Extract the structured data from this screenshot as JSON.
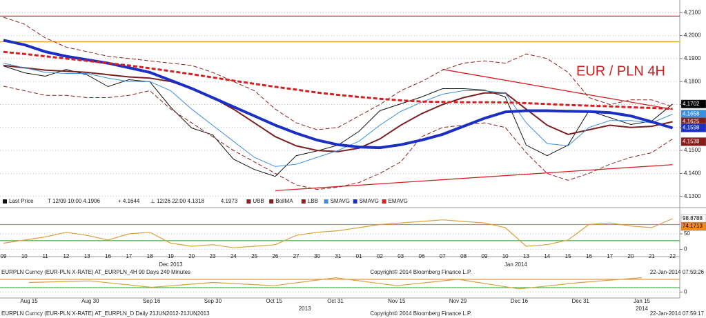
{
  "chart_data": [
    {
      "type": "line",
      "title": "EUR / PLN 4H",
      "categories": [
        "09",
        "10",
        "11",
        "12",
        "13",
        "16",
        "17",
        "18",
        "19",
        "20",
        "23",
        "24",
        "25",
        "26",
        "27",
        "30",
        "31",
        "01",
        "02",
        "03",
        "06",
        "07",
        "08",
        "09",
        "10",
        "13",
        "14",
        "15",
        "16",
        "17",
        "20",
        "21",
        "22"
      ],
      "periods": [
        {
          "label": "Dec 2013",
          "first": 0,
          "last": 16
        },
        {
          "label": "Jan 2014",
          "first": 17,
          "last": 32
        }
      ],
      "series": [
        {
          "name": "Last Price",
          "color": "#111111",
          "width": 1,
          "dash": false,
          "values": [
            4.1868,
            4.1838,
            4.1823,
            4.1853,
            4.1829,
            4.1778,
            4.1808,
            4.1799,
            4.1688,
            4.1598,
            4.1568,
            4.1462,
            4.1417,
            4.1387,
            4.1477,
            4.1498,
            4.1523,
            4.1583,
            4.1673,
            4.1703,
            4.1733,
            4.1769,
            4.1769,
            4.1763,
            4.1733,
            4.1523,
            4.1477,
            4.1523,
            4.1673,
            4.1643,
            4.1613,
            4.1628,
            4.1702
          ]
        },
        {
          "name": "UBB",
          "color": "#8b2020",
          "width": 1,
          "dash": true,
          "values": [
            4.208,
            4.205,
            4.199,
            4.195,
            4.193,
            4.191,
            4.19,
            4.189,
            4.188,
            4.187,
            4.184,
            4.18,
            4.176,
            4.168,
            4.162,
            4.159,
            4.16,
            4.165,
            4.17,
            4.176,
            4.18,
            4.185,
            4.188,
            4.189,
            4.188,
            4.192,
            4.19,
            4.184,
            4.173,
            4.17,
            4.172,
            4.172,
            4.169
          ]
        },
        {
          "name": "BollMA",
          "color": "#7a1e1e",
          "width": 2,
          "dash": false,
          "values": [
            4.187,
            4.186,
            4.185,
            4.1845,
            4.184,
            4.183,
            4.182,
            4.1815,
            4.18,
            4.177,
            4.173,
            4.168,
            4.162,
            4.156,
            4.152,
            4.15,
            4.1495,
            4.151,
            4.155,
            4.161,
            4.166,
            4.17,
            4.173,
            4.175,
            4.175,
            4.168,
            4.161,
            4.157,
            4.159,
            4.161,
            4.16,
            4.1605,
            4.1625
          ]
        },
        {
          "name": "LBB",
          "color": "#8b2020",
          "width": 1,
          "dash": true,
          "values": [
            4.178,
            4.176,
            4.174,
            4.174,
            4.173,
            4.173,
            4.174,
            4.176,
            4.168,
            4.162,
            4.156,
            4.15,
            4.145,
            4.14,
            4.135,
            4.133,
            4.134,
            4.136,
            4.14,
            4.145,
            4.156,
            4.16,
            4.161,
            4.162,
            4.16,
            4.149,
            4.14,
            4.137,
            4.14,
            4.144,
            4.147,
            4.149,
            4.155
          ]
        },
        {
          "name": "SMAVG",
          "color": "#3b8fdc",
          "width": 1,
          "dash": false,
          "values": [
            4.188,
            4.186,
            4.184,
            4.1835,
            4.1835,
            4.1815,
            4.18,
            4.18,
            4.176,
            4.168,
            4.161,
            4.154,
            4.147,
            4.143,
            4.144,
            4.147,
            4.15,
            4.154,
            4.161,
            4.167,
            4.171,
            4.1745,
            4.176,
            4.176,
            4.175,
            4.162,
            4.153,
            4.152,
            4.16,
            4.163,
            4.163,
            4.162,
            4.1658
          ]
        },
        {
          "name": "SMAVG",
          "color": "#1c2fc4",
          "width": 4,
          "dash": false,
          "values": [
            4.198,
            4.196,
            4.193,
            4.191,
            4.1895,
            4.188,
            4.186,
            4.184,
            4.1805,
            4.177,
            4.173,
            4.169,
            4.165,
            4.161,
            4.1575,
            4.1545,
            4.1525,
            4.1515,
            4.1512,
            4.1525,
            4.1545,
            4.157,
            4.1605,
            4.164,
            4.1668,
            4.1673,
            4.1673,
            4.1671,
            4.1669,
            4.1665,
            4.165,
            4.1625,
            4.1598
          ]
        },
        {
          "name": "EMAVG",
          "color": "#d42020",
          "width": 3,
          "dash": true,
          "values": [
            4.1929,
            4.192,
            4.191,
            4.19,
            4.189,
            4.188,
            4.187,
            4.1858,
            4.1845,
            4.1832,
            4.1818,
            4.1804,
            4.179,
            4.1777,
            4.1765,
            4.1752,
            4.1742,
            4.1733,
            4.1725,
            4.1718,
            4.1713,
            4.1711,
            4.171,
            4.171,
            4.1709,
            4.1706,
            4.1702,
            4.1698,
            4.1695,
            4.1692,
            4.1688,
            4.1685,
            4.1681
          ]
        }
      ],
      "legend_stats": [
        "T 12/09 10:00 4.1906",
        "+ 4.1644",
        "⊥ 12/26 22:00 4.1318",
        "4.1973"
      ],
      "ylim": [
        4.126,
        4.2155
      ],
      "yticks": [
        {
          "value": 4.13,
          "label": "4.1300"
        },
        {
          "value": 4.14,
          "label": "4.1400"
        },
        {
          "value": 4.15,
          "label": "4.1500"
        },
        {
          "value": 4.16,
          "label": "4.1600"
        },
        {
          "value": 4.17,
          "label": "4.1700"
        },
        {
          "value": 4.18,
          "label": "4.1800"
        },
        {
          "value": 4.19,
          "label": "4.1900"
        },
        {
          "value": 4.2,
          "label": "4.2000"
        },
        {
          "value": 4.21,
          "label": "4.2100"
        }
      ],
      "grid": true,
      "hlines": [
        {
          "value": 4.2085,
          "color": "#b02020"
        },
        {
          "value": 4.1973,
          "color": "#e0a020"
        }
      ],
      "trendlines": [
        {
          "from": [
            13,
            4.1325
          ],
          "to": [
            32,
            4.1438
          ],
          "color": "#d42020"
        },
        {
          "from": [
            21,
            4.1853
          ],
          "to": [
            32,
            4.1679
          ],
          "color": "#d42020"
        }
      ],
      "tags": [
        {
          "value": 4.1702,
          "color": "#000000",
          "text_color": "#ffffff"
        },
        {
          "value": 4.1658,
          "color": "#3b8fdc",
          "text_color": "#ffffff"
        },
        {
          "value": 4.1625,
          "color": "#7a1e1e",
          "text_color": "#ffffff"
        },
        {
          "value": 4.1598,
          "color": "#1c2fc4",
          "text_color": "#ffffff"
        },
        {
          "value": 4.1538,
          "color": "#8b1a1a",
          "text_color": "#ffffff"
        }
      ],
      "footer": [
        "EURPLN Curncy (EUR-PLN X-RATE) AT_EURPLN_4H 90 Days 240 Minutes",
        "Copyright© 2014 Bloomberg Finance L.P.",
        "22-Jan-2014 07:59:26"
      ]
    },
    {
      "type": "line",
      "values": [
        20,
        30,
        40,
        55,
        45,
        30,
        50,
        55,
        20,
        10,
        15,
        5,
        10,
        15,
        45,
        55,
        60,
        70,
        80,
        85,
        90,
        95,
        90,
        85,
        70,
        10,
        15,
        30,
        80,
        85,
        75,
        70,
        98.8788
      ],
      "color": "#d9a040",
      "ylim": [
        -19,
        130
      ],
      "yticks": [
        0,
        50
      ],
      "grid": true,
      "hlines": [
        {
          "value": 80,
          "color": "#e08a30"
        },
        {
          "value": 28,
          "color": "#40b040"
        }
      ],
      "tags": [
        {
          "value": 98.8788,
          "color": "#ffffff",
          "text_color": "#000000"
        },
        {
          "value": 74.1713,
          "color": "#f08a1c",
          "text_color": "#000000"
        }
      ]
    },
    {
      "type": "line",
      "categories": [
        "Aug 15",
        "Aug 30",
        "Sep 16",
        "Sep 30",
        "Oct 15",
        "Oct 31",
        "Nov 15",
        "Nov 29",
        "Dec 16",
        "Dec 31",
        "Jan 15"
      ],
      "periods": [
        {
          "label": "2013",
          "first": 0,
          "last": 9
        },
        {
          "label": "2014",
          "first": 10,
          "last": 10
        }
      ],
      "values": [
        60,
        70,
        30,
        60,
        40,
        90,
        40,
        80,
        20,
        60,
        90
      ],
      "color": "#d9a040",
      "ylim": [
        -20,
        110
      ],
      "yticks": [
        0
      ],
      "grid": true,
      "hlines": [
        {
          "value": 80,
          "color": "#e08a30"
        },
        {
          "value": 28,
          "color": "#40b040"
        }
      ],
      "footer": [
        "EURPLN Curncy (EUR-PLN X-RATE) AT_EURPLN_D  Daily 21JUN2012-21JUN2013",
        "Copyright© 2014 Bloomberg Finance L.P.",
        "22-Jan-2014 07:59:17"
      ]
    }
  ]
}
